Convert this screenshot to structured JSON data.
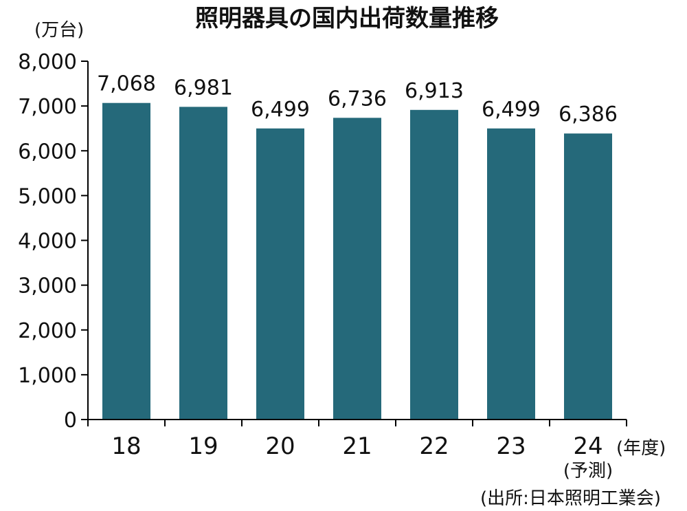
{
  "chart_data": {
    "type": "bar",
    "title": "照明器具の国内出荷数量推移",
    "ylabel": "(万台)",
    "xlabel": "(年度)",
    "categories": [
      "18",
      "19",
      "20",
      "21",
      "22",
      "23",
      "24"
    ],
    "values": [
      7068,
      6981,
      6499,
      6736,
      6913,
      6499,
      6386
    ],
    "value_labels": [
      "7,068",
      "6,981",
      "6,499",
      "6,736",
      "6,913",
      "6,499",
      "6,386"
    ],
    "ylim": [
      0,
      8000
    ],
    "yticks": [
      0,
      1000,
      2000,
      3000,
      4000,
      5000,
      6000,
      7000,
      8000
    ],
    "ytick_labels": [
      "0",
      "1,000",
      "2,000",
      "3,000",
      "4,000",
      "5,000",
      "6,000",
      "7,000",
      "8,000"
    ],
    "category_note": "(予測)",
    "category_note_index": 6,
    "source": "(出所:日本照明工業会)",
    "bar_color": "#25697a",
    "grid": false,
    "legend": "none"
  }
}
